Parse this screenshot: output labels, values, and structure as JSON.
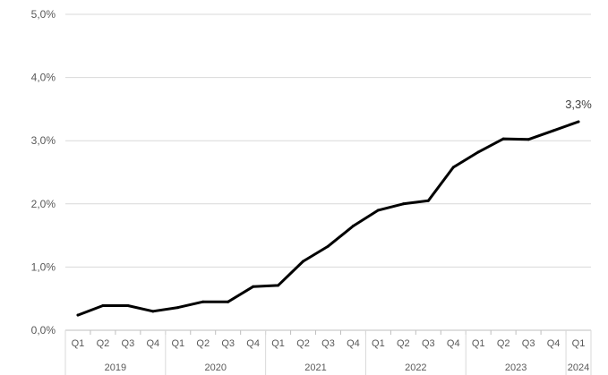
{
  "chart_data": {
    "type": "line",
    "title": "",
    "xlabel": "",
    "ylabel": "",
    "ylim": [
      0,
      0.05
    ],
    "yticks": [
      "0,0%",
      "1,0%",
      "2,0%",
      "3,0%",
      "4,0%",
      "5,0%"
    ],
    "grid": "horizontal",
    "legend": "none",
    "line_color": "#000000",
    "categories": [
      {
        "quarter": "Q1",
        "year": "2019"
      },
      {
        "quarter": "Q2",
        "year": "2019"
      },
      {
        "quarter": "Q3",
        "year": "2019"
      },
      {
        "quarter": "Q4",
        "year": "2019"
      },
      {
        "quarter": "Q1",
        "year": "2020"
      },
      {
        "quarter": "Q2",
        "year": "2020"
      },
      {
        "quarter": "Q3",
        "year": "2020"
      },
      {
        "quarter": "Q4",
        "year": "2020"
      },
      {
        "quarter": "Q1",
        "year": "2021"
      },
      {
        "quarter": "Q2",
        "year": "2021"
      },
      {
        "quarter": "Q3",
        "year": "2021"
      },
      {
        "quarter": "Q4",
        "year": "2021"
      },
      {
        "quarter": "Q1",
        "year": "2022"
      },
      {
        "quarter": "Q2",
        "year": "2022"
      },
      {
        "quarter": "Q3",
        "year": "2022"
      },
      {
        "quarter": "Q4",
        "year": "2022"
      },
      {
        "quarter": "Q1",
        "year": "2023"
      },
      {
        "quarter": "Q2",
        "year": "2023"
      },
      {
        "quarter": "Q3",
        "year": "2023"
      },
      {
        "quarter": "Q4",
        "year": "2023"
      },
      {
        "quarter": "Q1",
        "year": "2024"
      }
    ],
    "years": [
      "2019",
      "2020",
      "2021",
      "2022",
      "2023",
      "2024"
    ],
    "values": [
      0.0024,
      0.0039,
      0.0039,
      0.003,
      0.0036,
      0.0045,
      0.0045,
      0.0069,
      0.0071,
      0.0109,
      0.0133,
      0.0165,
      0.019,
      0.02,
      0.0205,
      0.0258,
      0.0282,
      0.0303,
      0.0302,
      0.0316,
      0.033
    ],
    "data_labels": [
      {
        "index": 20,
        "text": "3,3%"
      }
    ]
  }
}
